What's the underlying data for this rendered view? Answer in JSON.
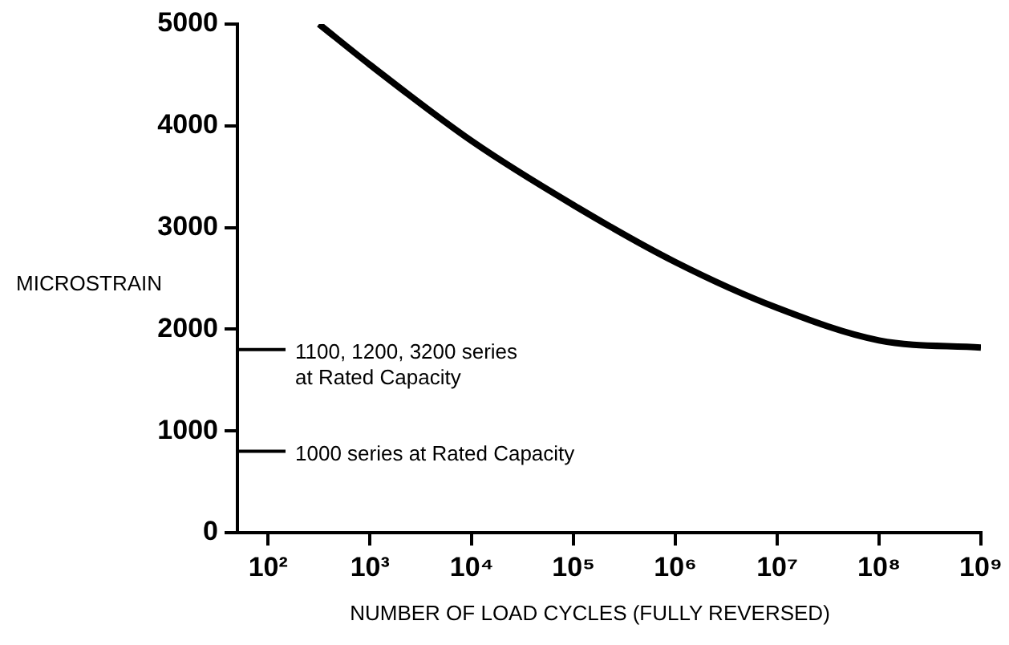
{
  "chart_data": {
    "type": "line",
    "xlabel": "NUMBER OF LOAD CYCLES (FULLY REVERSED)",
    "ylabel": "MICROSTRAIN",
    "log": "x",
    "xlim": [
      50,
      1000000000
    ],
    "xticks": [
      {
        "value": 100,
        "label": "10²"
      },
      {
        "value": 1000,
        "label": "10³"
      },
      {
        "value": 10000,
        "label": "10⁴"
      },
      {
        "value": 100000,
        "label": "10⁵"
      },
      {
        "value": 1000000,
        "label": "10⁶"
      },
      {
        "value": 10000000,
        "label": "10⁷"
      },
      {
        "value": 100000000,
        "label": "10⁸"
      },
      {
        "value": 1000000000,
        "label": "10⁹"
      }
    ],
    "ylim": [
      0,
      5000
    ],
    "yticks": [
      0,
      1000,
      2000,
      3000,
      4000,
      5000
    ],
    "x": [
      316,
      1000,
      10000,
      100000,
      1000000,
      10000000,
      100000000,
      1000000000
    ],
    "series": [
      {
        "color": "#000000",
        "values": [
          5000,
          4600,
          3850,
          3220,
          2660,
          2210,
          1890,
          1820
        ]
      }
    ],
    "ref_lines": [
      {
        "axis": "y",
        "value": 1800,
        "label": "1100, 1200, 3200 series\nat Rated Capacity"
      },
      {
        "axis": "y",
        "value": 800,
        "label": "1000 series at Rated Capacity"
      }
    ],
    "marker": "none",
    "line_style": "solid"
  }
}
